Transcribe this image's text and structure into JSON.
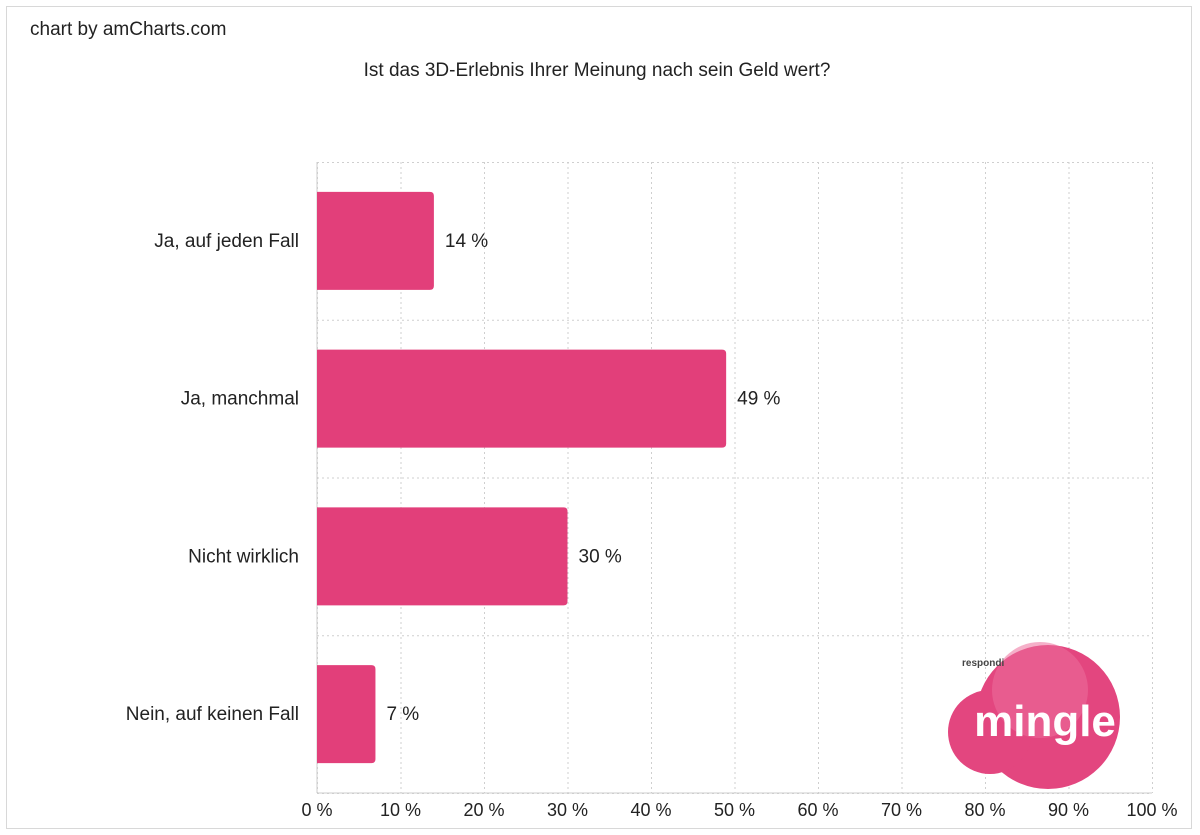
{
  "credit": "chart by amCharts.com",
  "chart_data": {
    "type": "bar",
    "orientation": "horizontal",
    "title": "Ist das 3D-Erlebnis Ihrer Meinung nach sein Geld wert?",
    "categories": [
      "Ja, auf jeden Fall",
      "Ja, manchmal",
      "Nicht wirklich",
      "Nein, auf keinen Fall"
    ],
    "values": [
      14,
      49,
      30,
      7
    ],
    "value_labels": [
      "14 %",
      "49 %",
      "30 %",
      "7 %"
    ],
    "x_ticks": [
      "0 %",
      "10 %",
      "20 %",
      "30 %",
      "40 %",
      "50 %",
      "60 %",
      "70 %",
      "80 %",
      "90 %",
      "100 %"
    ],
    "xlim": [
      0,
      100
    ],
    "grid": true,
    "bar_color": "#e23f7a"
  },
  "logo": {
    "small_text": "respondi",
    "text": "mingle",
    "color": "#e3467f"
  }
}
